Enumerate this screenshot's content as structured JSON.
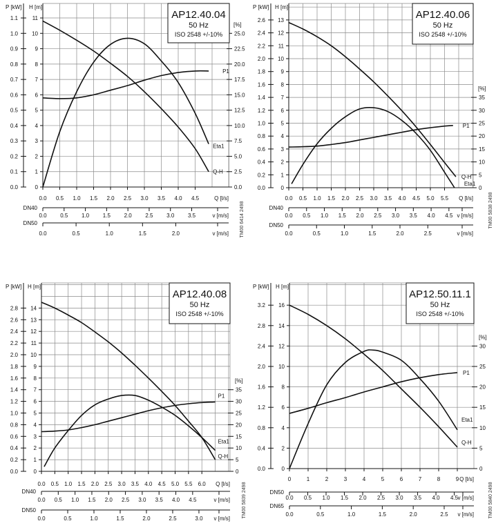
{
  "chart_data": [
    {
      "type": "line",
      "title": "AP12.40.04",
      "frequency": "50 Hz",
      "standard": "ISO 2548 +/-10%",
      "p_label": "P [kW]",
      "h_label": "H [m]",
      "pct_label": "[%]",
      "x_label": "Q [l/s]",
      "x_ticks": [
        "0.0",
        "0.5",
        "1.0",
        "1.5",
        "2.0",
        "2.5",
        "3.0",
        "3.5",
        "4.0",
        "4.5"
      ],
      "h_ticks": [
        "0",
        "1",
        "2",
        "3",
        "4",
        "5",
        "6",
        "7",
        "8",
        "9",
        "10",
        "11"
      ],
      "p_ticks": [
        "0.0",
        "0.1",
        "0.2",
        "0.3",
        "0.4",
        "0.5",
        "0.6",
        "0.7",
        "0.8",
        "0.9",
        "1.0",
        "1.1"
      ],
      "pct_ticks": [
        "0.0",
        "2.5",
        "5.0",
        "7.5",
        "10.0",
        "12.5",
        "15.0",
        "17.5",
        "20.0",
        "22.5",
        "25.0"
      ],
      "axis_scales": {
        "kw_per_m": 0.1,
        "pct_per_m": 2.5
      },
      "velocity_axes": [
        {
          "pipe": "DN40",
          "label": "v [m/s]",
          "ticks": [
            "0.0",
            "0.5",
            "1.0",
            "1.5",
            "2.0",
            "2.5",
            "3.0",
            "3.5"
          ]
        },
        {
          "pipe": "DN50",
          "label": "v [m/s]",
          "ticks": [
            "0.0",
            "0.5",
            "1.0",
            "1.5",
            "2.0"
          ]
        }
      ],
      "series": [
        {
          "name": "Q-H",
          "unit": "m",
          "points": [
            [
              0,
              10.8
            ],
            [
              0.5,
              10.2
            ],
            [
              1,
              9.55
            ],
            [
              1.5,
              8.85
            ],
            [
              2,
              8.05
            ],
            [
              2.5,
              7.2
            ],
            [
              3,
              6.2
            ],
            [
              3.5,
              5.1
            ],
            [
              4,
              3.9
            ],
            [
              4.5,
              2.5
            ],
            [
              4.9,
              1.0
            ]
          ]
        },
        {
          "name": "P1",
          "unit": "kW",
          "points": [
            [
              0,
              0.58
            ],
            [
              0.5,
              0.575
            ],
            [
              1,
              0.58
            ],
            [
              1.5,
              0.6
            ],
            [
              2,
              0.63
            ],
            [
              2.5,
              0.66
            ],
            [
              3,
              0.695
            ],
            [
              3.5,
              0.725
            ],
            [
              4,
              0.745
            ],
            [
              4.5,
              0.755
            ],
            [
              4.9,
              0.755
            ]
          ]
        },
        {
          "name": "Eta1",
          "unit": "%",
          "points": [
            [
              0,
              0
            ],
            [
              0.5,
              9
            ],
            [
              1,
              15.5
            ],
            [
              1.5,
              20.3
            ],
            [
              2,
              23.2
            ],
            [
              2.5,
              24.2
            ],
            [
              3,
              23.3
            ],
            [
              3.5,
              20.5
            ],
            [
              4,
              17
            ],
            [
              4.5,
              12
            ],
            [
              4.9,
              7
            ]
          ]
        }
      ],
      "drawing_code": "TM00 6414 2498"
    },
    {
      "type": "line",
      "title": "AP12.40.06",
      "frequency": "50 Hz",
      "standard": "ISO 2548 +/-10%",
      "p_label": "P [kW]",
      "h_label": "H [m]",
      "pct_label": "[%]",
      "x_label": "Q [l/s]",
      "x_ticks": [
        "0.0",
        "0.5",
        "1.0",
        "1.5",
        "2.0",
        "2.5",
        "3.0",
        "3.5",
        "4.0",
        "4.5",
        "5.0",
        "5.5"
      ],
      "h_ticks": [
        "0",
        "1",
        "2",
        "3",
        "4",
        "5",
        "6",
        "7",
        "8",
        "9",
        "10",
        "11",
        "12",
        "13"
      ],
      "p_ticks": [
        "0.0",
        "0.2",
        "0.4",
        "0.6",
        "0.8",
        "1.0",
        "1.2",
        "1.4",
        "1.6",
        "1.8",
        "2.0",
        "2.2",
        "2.4",
        "2.6"
      ],
      "pct_ticks": [
        "0",
        "5",
        "10",
        "15",
        "20",
        "25",
        "30",
        "35"
      ],
      "axis_scales": {
        "kw_per_m": 0.2,
        "pct_per_m": 5
      },
      "velocity_axes": [
        {
          "pipe": "DN40",
          "label": "v [m/s]",
          "ticks": [
            "0.0",
            "0.5",
            "1.0",
            "1.5",
            "2.0",
            "2.5",
            "3.0",
            "3.5",
            "4.0",
            "4.5"
          ]
        },
        {
          "pipe": "DN50",
          "label": "v [m/s]",
          "ticks": [
            "0.0",
            "0.5",
            "1.0",
            "1.5",
            "2.0",
            "2.5"
          ]
        }
      ],
      "series": [
        {
          "name": "Q-H",
          "unit": "m",
          "points": [
            [
              0,
              12.8
            ],
            [
              0.5,
              12.3
            ],
            [
              1,
              11.7
            ],
            [
              1.5,
              11.0
            ],
            [
              2,
              10.15
            ],
            [
              2.5,
              9.2
            ],
            [
              3,
              8.2
            ],
            [
              3.5,
              7.1
            ],
            [
              4,
              5.95
            ],
            [
              4.5,
              4.7
            ],
            [
              5,
              3.35
            ],
            [
              5.5,
              1.95
            ],
            [
              5.9,
              0.85
            ]
          ]
        },
        {
          "name": "P1",
          "unit": "kW",
          "points": [
            [
              0,
              0.63
            ],
            [
              0.5,
              0.635
            ],
            [
              1,
              0.645
            ],
            [
              1.5,
              0.67
            ],
            [
              2,
              0.7
            ],
            [
              2.5,
              0.74
            ],
            [
              3,
              0.78
            ],
            [
              3.5,
              0.82
            ],
            [
              4,
              0.86
            ],
            [
              4.5,
              0.9
            ],
            [
              5,
              0.93
            ],
            [
              5.5,
              0.955
            ],
            [
              5.8,
              0.965
            ]
          ]
        },
        {
          "name": "Eta1",
          "unit": "%",
          "points": [
            [
              0.1,
              1.5
            ],
            [
              0.5,
              9
            ],
            [
              1,
              17
            ],
            [
              1.5,
              23
            ],
            [
              2,
              27.5
            ],
            [
              2.5,
              30.5
            ],
            [
              3,
              31
            ],
            [
              3.5,
              29.5
            ],
            [
              4,
              26
            ],
            [
              4.5,
              21
            ],
            [
              5,
              14.5
            ],
            [
              5.5,
              6
            ],
            [
              5.85,
              0
            ]
          ]
        }
      ],
      "drawing_code": "TM00 5838 2498"
    },
    {
      "type": "line",
      "title": "AP12.40.08",
      "frequency": "50 Hz",
      "standard": "ISO 2548 +/-10%",
      "p_label": "P [kW]",
      "h_label": "H [m]",
      "pct_label": "[%]",
      "x_label": "Q [l/s]",
      "x_ticks": [
        "0.0",
        "0.5",
        "1.0",
        "1.5",
        "2.0",
        "2.5",
        "3.0",
        "3.5",
        "4.0",
        "4.5",
        "5.0",
        "5.5",
        "6.0"
      ],
      "h_ticks": [
        "0",
        "1",
        "2",
        "3",
        "4",
        "5",
        "6",
        "7",
        "8",
        "9",
        "10",
        "11",
        "12",
        "13",
        "14"
      ],
      "p_ticks": [
        "0.0",
        "0.2",
        "0.4",
        "0.6",
        "0.8",
        "1.0",
        "1.2",
        "1.4",
        "1.6",
        "1.8",
        "2.0",
        "2.2",
        "2.4",
        "2.6",
        "2.8"
      ],
      "pct_ticks": [
        "0",
        "5",
        "10",
        "15",
        "20",
        "25",
        "30",
        "35"
      ],
      "axis_scales": {
        "kw_per_m": 0.2,
        "pct_per_m": 5
      },
      "velocity_axes": [
        {
          "pipe": "DN40",
          "label": "v [m/s]",
          "ticks": [
            "0.0",
            "0.5",
            "1.0",
            "1.5",
            "2.0",
            "2.5",
            "3.0",
            "3.5",
            "4.0",
            "4.5"
          ]
        },
        {
          "pipe": "DN50",
          "label": "v [m/s]",
          "ticks": [
            "0.0",
            "0.5",
            "1.0",
            "1.5",
            "2.0",
            "2.5",
            "3.0"
          ]
        }
      ],
      "series": [
        {
          "name": "Q-H",
          "unit": "m",
          "points": [
            [
              0,
              14.5
            ],
            [
              0.5,
              14.0
            ],
            [
              1,
              13.4
            ],
            [
              1.5,
              12.75
            ],
            [
              2,
              11.95
            ],
            [
              2.5,
              11.1
            ],
            [
              3,
              10.15
            ],
            [
              3.5,
              9.1
            ],
            [
              4,
              8.0
            ],
            [
              4.5,
              6.85
            ],
            [
              5,
              5.65
            ],
            [
              5.5,
              4.3
            ],
            [
              6,
              2.9
            ],
            [
              6.5,
              1.0
            ]
          ]
        },
        {
          "name": "P1",
          "unit": "kW",
          "points": [
            [
              0,
              0.68
            ],
            [
              0.5,
              0.69
            ],
            [
              1,
              0.71
            ],
            [
              1.5,
              0.75
            ],
            [
              2,
              0.8
            ],
            [
              2.5,
              0.86
            ],
            [
              3,
              0.92
            ],
            [
              3.5,
              0.98
            ],
            [
              4,
              1.04
            ],
            [
              4.5,
              1.09
            ],
            [
              5,
              1.13
            ],
            [
              5.5,
              1.16
            ],
            [
              6,
              1.18
            ],
            [
              6.5,
              1.19
            ]
          ]
        },
        {
          "name": "Eta1",
          "unit": "%",
          "points": [
            [
              0.1,
              2
            ],
            [
              0.5,
              10
            ],
            [
              1,
              17.5
            ],
            [
              1.5,
              24
            ],
            [
              2,
              28.5
            ],
            [
              2.5,
              31
            ],
            [
              3,
              32.5
            ],
            [
              3.5,
              32.5
            ],
            [
              4,
              30.5
            ],
            [
              4.5,
              27.5
            ],
            [
              5,
              24
            ],
            [
              5.5,
              19.5
            ],
            [
              6,
              14.5
            ],
            [
              6.5,
              9
            ]
          ]
        }
      ],
      "drawing_code": "TM00 5839 2498"
    },
    {
      "type": "line",
      "title": "AP12.50.11.1",
      "frequency": "50 Hz",
      "standard": "ISO 2548 +/-10%",
      "p_label": "P [kW]",
      "h_label": "H [m]",
      "pct_label": "[%]",
      "x_label": "Q [l/s]",
      "x_ticks": [
        "0",
        "1",
        "2",
        "3",
        "4",
        "5",
        "6",
        "7",
        "8",
        "9"
      ],
      "h_ticks": [
        "0",
        "2",
        "4",
        "6",
        "8",
        "10",
        "12",
        "14",
        "16"
      ],
      "p_ticks": [
        "0.0",
        "0.4",
        "0.8",
        "1.2",
        "1.6",
        "2.0",
        "2.4",
        "2.8",
        "3.2"
      ],
      "pct_ticks": [
        "0",
        "5",
        "10",
        "15",
        "20",
        "25",
        "30"
      ],
      "axis_scales": {
        "kw_per_m": 0.2,
        "pct_per_m": 2.5
      },
      "velocity_axes": [
        {
          "pipe": "DN50",
          "label": "v [m/s]",
          "ticks": [
            "0.0",
            "0.5",
            "1.0",
            "1.5",
            "2.0",
            "2.5",
            "3.0",
            "3.5",
            "4.0",
            "4.5"
          ]
        },
        {
          "pipe": "DN65",
          "label": "v [m/s]",
          "ticks": [
            "0.0",
            "0.5",
            "1.0",
            "1.5",
            "2.0",
            "2.5"
          ]
        }
      ],
      "series": [
        {
          "name": "Q-H",
          "unit": "m",
          "points": [
            [
              0,
              16
            ],
            [
              1,
              15.1
            ],
            [
              2,
              14.0
            ],
            [
              3,
              12.7
            ],
            [
              4,
              11.2
            ],
            [
              5,
              9.6
            ],
            [
              6,
              7.8
            ],
            [
              7,
              6.0
            ],
            [
              8,
              4.1
            ],
            [
              9,
              2.1
            ]
          ]
        },
        {
          "name": "P1",
          "unit": "kW",
          "points": [
            [
              0,
              1.08
            ],
            [
              1,
              1.18
            ],
            [
              2,
              1.29
            ],
            [
              3,
              1.39
            ],
            [
              4,
              1.5
            ],
            [
              5,
              1.6
            ],
            [
              6,
              1.7
            ],
            [
              7,
              1.78
            ],
            [
              8,
              1.84
            ],
            [
              9,
              1.88
            ]
          ]
        },
        {
          "name": "Eta1",
          "unit": "%",
          "points": [
            [
              0,
              0
            ],
            [
              1,
              11
            ],
            [
              2,
              20.5
            ],
            [
              3,
              26
            ],
            [
              4,
              28.7
            ],
            [
              4.5,
              29
            ],
            [
              5,
              28.5
            ],
            [
              6,
              26.5
            ],
            [
              7,
              22
            ],
            [
              8,
              16.5
            ],
            [
              9,
              9.5
            ]
          ]
        }
      ],
      "drawing_code": "TM00 5840 2498"
    }
  ]
}
